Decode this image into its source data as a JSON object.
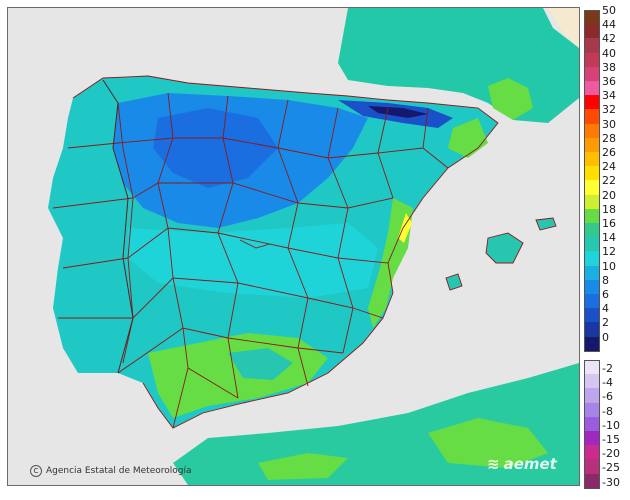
{
  "map": {
    "credit": "Agencia Estatal de Meteorología",
    "credit_symbol": "C",
    "brand": "aemet",
    "background_color": "#e6e6e6",
    "sea_color": "#e6e6e6",
    "border_color": "#8b1a1a"
  },
  "legend": {
    "positive": [
      {
        "label": "50",
        "color": "#7a3a1a"
      },
      {
        "label": "44",
        "color": "#8a2a2a"
      },
      {
        "label": "42",
        "color": "#a63a4a"
      },
      {
        "label": "40",
        "color": "#c23a5a"
      },
      {
        "label": "38",
        "color": "#d8407a"
      },
      {
        "label": "36",
        "color": "#ee5aa0"
      },
      {
        "label": "34",
        "color": "#ff0000"
      },
      {
        "label": "32",
        "color": "#ff4a00"
      },
      {
        "label": "30",
        "color": "#ff7a00"
      },
      {
        "label": "28",
        "color": "#ff9a00"
      },
      {
        "label": "26",
        "color": "#ffbf00"
      },
      {
        "label": "24",
        "color": "#ffe000"
      },
      {
        "label": "22",
        "color": "#ffff33"
      },
      {
        "label": "20",
        "color": "#ccee33"
      },
      {
        "label": "18",
        "color": "#66dd44"
      },
      {
        "label": "16",
        "color": "#33c98c"
      },
      {
        "label": "14",
        "color": "#26c6b0"
      },
      {
        "label": "12",
        "color": "#1fd4d8"
      },
      {
        "label": "10",
        "color": "#1ab0e0"
      },
      {
        "label": "8",
        "color": "#1a8ae8"
      },
      {
        "label": "6",
        "color": "#1a6ee0"
      },
      {
        "label": "4",
        "color": "#1a50c8"
      },
      {
        "label": "2",
        "color": "#1a36a0"
      },
      {
        "label": "0",
        "color": "#14196e"
      }
    ],
    "negative": [
      {
        "label": "-2",
        "color": "#ede4f8"
      },
      {
        "label": "-4",
        "color": "#d6c6f2"
      },
      {
        "label": "-6",
        "color": "#bfa6ec"
      },
      {
        "label": "-8",
        "color": "#a884e4"
      },
      {
        "label": "-10",
        "color": "#9a5ce0"
      },
      {
        "label": "-15",
        "color": "#a028c0"
      },
      {
        "label": "-20",
        "color": "#cc2a90"
      },
      {
        "label": "-25",
        "color": "#b8307a"
      },
      {
        "label": "-30",
        "color": "#8a2a6a"
      }
    ]
  }
}
